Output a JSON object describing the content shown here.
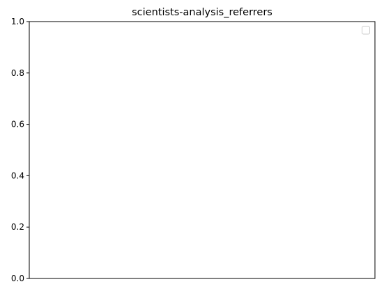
{
  "chart_data": {
    "type": "line",
    "title": "scientists-analysis_referrers",
    "xlabel": "",
    "ylabel": "",
    "ylim": [
      0,
      1
    ],
    "yticks": [
      "0.0",
      "0.2",
      "0.4",
      "0.6",
      "0.8",
      "1.0"
    ],
    "xticks": [],
    "series": [],
    "grid": false,
    "legend": {
      "placement": "top-right",
      "entries": []
    }
  }
}
